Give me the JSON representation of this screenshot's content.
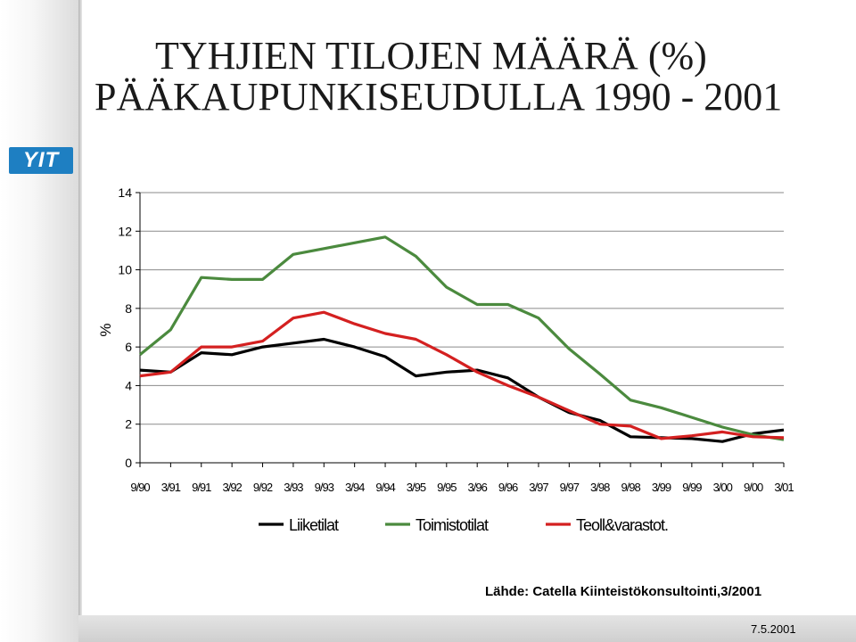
{
  "title_lines": [
    "TYHJIEN TILOJEN MÄÄRÄ (%)",
    "PÄÄKAUPUNKISEUDULLA 1990 - 2001"
  ],
  "logo_text": "YIT",
  "source": "Lähde: Catella Kiinteistökonsultointi,3/2001",
  "date": "7.5.2001",
  "chart_data": {
    "type": "line",
    "categories": [
      "9/90",
      "3/91",
      "9/91",
      "3/92",
      "9/92",
      "3/93",
      "9/93",
      "3/94",
      "9/94",
      "3/95",
      "9/95",
      "3/96",
      "9/96",
      "3/97",
      "9/97",
      "3/98",
      "9/98",
      "3/99",
      "9/99",
      "3/00",
      "9/00",
      "3/01"
    ],
    "ylabel": "%",
    "ylim": [
      0,
      14
    ],
    "yticks": [
      0,
      2,
      4,
      6,
      8,
      10,
      12,
      14
    ],
    "grid": true,
    "legend_position": "bottom",
    "series": [
      {
        "name": "Liiketilat",
        "color": "#000000",
        "values": [
          4.8,
          4.7,
          5.7,
          5.6,
          6.0,
          6.2,
          6.4,
          6.0,
          5.5,
          4.5,
          4.7,
          4.8,
          4.4,
          3.4,
          2.6,
          2.2,
          1.35,
          1.3,
          1.25,
          1.1,
          1.5,
          1.7
        ]
      },
      {
        "name": "Toimistotilat",
        "color": "#4b8a3e",
        "values": [
          5.6,
          6.9,
          9.6,
          9.5,
          9.5,
          10.8,
          11.1,
          11.4,
          11.7,
          10.7,
          9.1,
          8.2,
          8.2,
          7.5,
          5.9,
          4.6,
          3.25,
          2.85,
          2.35,
          1.85,
          1.45,
          1.2
        ]
      },
      {
        "name": "Teoll&varastot.",
        "color": "#d42020",
        "values": [
          4.5,
          4.7,
          6.0,
          6.0,
          6.3,
          7.5,
          7.8,
          7.2,
          6.7,
          6.4,
          5.6,
          4.7,
          4.0,
          3.4,
          2.7,
          2.0,
          1.9,
          1.25,
          1.4,
          1.6,
          1.35,
          1.3
        ]
      }
    ]
  }
}
